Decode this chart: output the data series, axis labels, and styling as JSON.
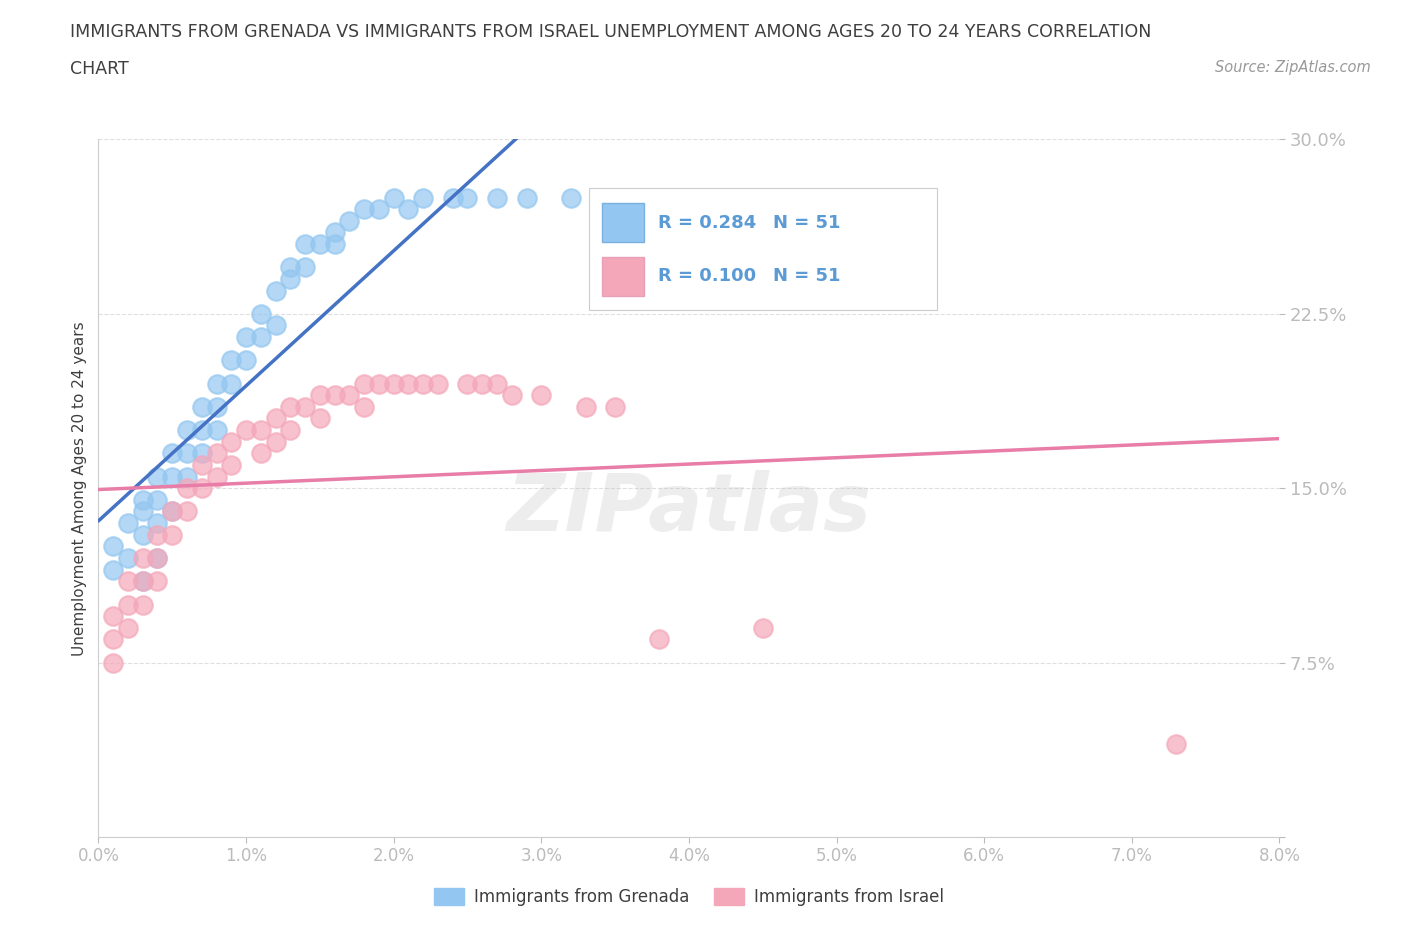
{
  "title_line1": "IMMIGRANTS FROM GRENADA VS IMMIGRANTS FROM ISRAEL UNEMPLOYMENT AMONG AGES 20 TO 24 YEARS CORRELATION",
  "title_line2": "CHART",
  "source_text": "Source: ZipAtlas.com",
  "ylabel": "Unemployment Among Ages 20 to 24 years",
  "xmin": 0.0,
  "xmax": 0.08,
  "ymin": 0.0,
  "ymax": 0.3,
  "yticks": [
    0.0,
    0.075,
    0.15,
    0.225,
    0.3
  ],
  "ytick_labels": [
    "",
    "7.5%",
    "15.0%",
    "22.5%",
    "30.0%"
  ],
  "xticks": [
    0.0,
    0.01,
    0.02,
    0.03,
    0.04,
    0.05,
    0.06,
    0.07,
    0.08
  ],
  "xtick_labels": [
    "0.0%",
    "1.0%",
    "2.0%",
    "3.0%",
    "4.0%",
    "5.0%",
    "6.0%",
    "7.0%",
    "8.0%"
  ],
  "legend_label1": "Immigrants from Grenada",
  "legend_label2": "Immigrants from Israel",
  "legend_R1": "R = 0.284",
  "legend_N1": "N = 51",
  "legend_R2": "R = 0.100",
  "legend_N2": "N = 51",
  "color_grenada": "#93C6F0",
  "color_israel": "#F4A7B9",
  "color_line_grenada": "#4472C4",
  "color_line_israel": "#E87DA8",
  "color_title": "#3F3F3F",
  "color_axis_labels": "#5B9BD5",
  "watermark": "ZIPatlas",
  "grenada_x": [
    0.001,
    0.001,
    0.002,
    0.002,
    0.003,
    0.003,
    0.003,
    0.003,
    0.004,
    0.004,
    0.004,
    0.004,
    0.005,
    0.005,
    0.005,
    0.006,
    0.006,
    0.006,
    0.007,
    0.007,
    0.007,
    0.008,
    0.008,
    0.008,
    0.009,
    0.009,
    0.01,
    0.01,
    0.011,
    0.011,
    0.012,
    0.012,
    0.013,
    0.013,
    0.014,
    0.014,
    0.015,
    0.016,
    0.016,
    0.017,
    0.018,
    0.019,
    0.02,
    0.021,
    0.022,
    0.024,
    0.025,
    0.027,
    0.029,
    0.032,
    0.038
  ],
  "grenada_y": [
    0.125,
    0.115,
    0.135,
    0.12,
    0.145,
    0.14,
    0.13,
    0.11,
    0.155,
    0.145,
    0.135,
    0.12,
    0.165,
    0.155,
    0.14,
    0.175,
    0.165,
    0.155,
    0.185,
    0.175,
    0.165,
    0.195,
    0.185,
    0.175,
    0.205,
    0.195,
    0.215,
    0.205,
    0.225,
    0.215,
    0.235,
    0.22,
    0.245,
    0.24,
    0.255,
    0.245,
    0.255,
    0.26,
    0.255,
    0.265,
    0.27,
    0.27,
    0.275,
    0.27,
    0.275,
    0.275,
    0.275,
    0.275,
    0.275,
    0.275,
    0.275
  ],
  "israel_x": [
    0.001,
    0.001,
    0.001,
    0.002,
    0.002,
    0.002,
    0.003,
    0.003,
    0.003,
    0.004,
    0.004,
    0.004,
    0.005,
    0.005,
    0.006,
    0.006,
    0.007,
    0.007,
    0.008,
    0.008,
    0.009,
    0.009,
    0.01,
    0.011,
    0.011,
    0.012,
    0.012,
    0.013,
    0.013,
    0.014,
    0.015,
    0.015,
    0.016,
    0.017,
    0.018,
    0.018,
    0.019,
    0.02,
    0.021,
    0.022,
    0.023,
    0.025,
    0.026,
    0.027,
    0.028,
    0.03,
    0.033,
    0.035,
    0.038,
    0.045,
    0.073
  ],
  "israel_y": [
    0.095,
    0.085,
    0.075,
    0.11,
    0.1,
    0.09,
    0.12,
    0.11,
    0.1,
    0.13,
    0.12,
    0.11,
    0.14,
    0.13,
    0.15,
    0.14,
    0.16,
    0.15,
    0.165,
    0.155,
    0.17,
    0.16,
    0.175,
    0.175,
    0.165,
    0.18,
    0.17,
    0.185,
    0.175,
    0.185,
    0.19,
    0.18,
    0.19,
    0.19,
    0.195,
    0.185,
    0.195,
    0.195,
    0.195,
    0.195,
    0.195,
    0.195,
    0.195,
    0.195,
    0.19,
    0.19,
    0.185,
    0.185,
    0.085,
    0.09,
    0.04
  ],
  "background_color": "#FFFFFF",
  "grid_color": "#D8D8D8"
}
